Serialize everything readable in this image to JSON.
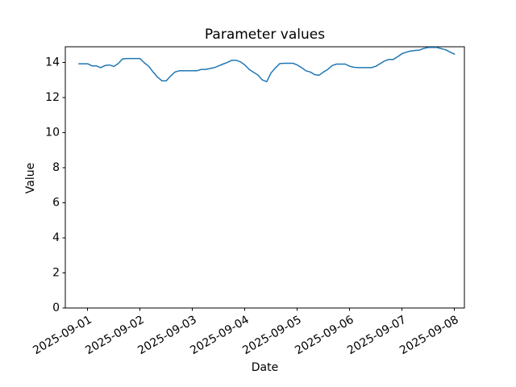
{
  "chart_data": {
    "type": "line",
    "title": "Parameter values",
    "xlabel": "Date",
    "ylabel": "Value",
    "grid": false,
    "legend": "none",
    "line_color": "#1f77b4",
    "axis_color": "#000000",
    "background_color": "#ffffff",
    "x_tick_labels": [
      "2025-09-01",
      "2025-09-02",
      "2025-09-03",
      "2025-09-04",
      "2025-09-05",
      "2025-09-06",
      "2025-09-07",
      "2025-09-08"
    ],
    "y_tick_labels": [
      "0",
      "2",
      "4",
      "6",
      "8",
      "10",
      "12",
      "14"
    ],
    "y_ticks": [
      0,
      2,
      4,
      6,
      8,
      10,
      12,
      14
    ],
    "ylim": [
      0,
      14.89
    ],
    "xlim_days_from_first_tick": [
      -0.426,
      7.19
    ],
    "series": [
      {
        "name": "parameter-values",
        "x_unit": "days since 2025-09-01 00:00",
        "points": [
          [
            -0.167,
            13.92
          ],
          [
            -0.083,
            13.92
          ],
          [
            0.0,
            13.92
          ],
          [
            0.083,
            13.8
          ],
          [
            0.167,
            13.8
          ],
          [
            0.25,
            13.7
          ],
          [
            0.333,
            13.82
          ],
          [
            0.417,
            13.85
          ],
          [
            0.5,
            13.77
          ],
          [
            0.583,
            13.93
          ],
          [
            0.667,
            14.2
          ],
          [
            0.75,
            14.22
          ],
          [
            0.833,
            14.22
          ],
          [
            0.917,
            14.22
          ],
          [
            1.0,
            14.22
          ],
          [
            1.083,
            13.97
          ],
          [
            1.167,
            13.78
          ],
          [
            1.25,
            13.45
          ],
          [
            1.333,
            13.16
          ],
          [
            1.417,
            12.95
          ],
          [
            1.5,
            12.95
          ],
          [
            1.583,
            13.22
          ],
          [
            1.667,
            13.45
          ],
          [
            1.75,
            13.52
          ],
          [
            1.833,
            13.52
          ],
          [
            1.917,
            13.52
          ],
          [
            2.0,
            13.52
          ],
          [
            2.083,
            13.52
          ],
          [
            2.167,
            13.6
          ],
          [
            2.25,
            13.6
          ],
          [
            2.333,
            13.65
          ],
          [
            2.417,
            13.7
          ],
          [
            2.5,
            13.8
          ],
          [
            2.583,
            13.9
          ],
          [
            2.667,
            14.0
          ],
          [
            2.75,
            14.12
          ],
          [
            2.833,
            14.12
          ],
          [
            2.917,
            14.03
          ],
          [
            3.0,
            13.85
          ],
          [
            3.083,
            13.6
          ],
          [
            3.167,
            13.44
          ],
          [
            3.25,
            13.28
          ],
          [
            3.333,
            13.0
          ],
          [
            3.417,
            12.9
          ],
          [
            3.5,
            13.4
          ],
          [
            3.583,
            13.68
          ],
          [
            3.667,
            13.93
          ],
          [
            3.75,
            13.95
          ],
          [
            3.833,
            13.95
          ],
          [
            3.917,
            13.95
          ],
          [
            4.0,
            13.85
          ],
          [
            4.083,
            13.7
          ],
          [
            4.167,
            13.52
          ],
          [
            4.25,
            13.45
          ],
          [
            4.333,
            13.3
          ],
          [
            4.417,
            13.27
          ],
          [
            4.5,
            13.45
          ],
          [
            4.583,
            13.6
          ],
          [
            4.667,
            13.82
          ],
          [
            4.75,
            13.9
          ],
          [
            4.833,
            13.9
          ],
          [
            4.917,
            13.9
          ],
          [
            5.0,
            13.78
          ],
          [
            5.083,
            13.72
          ],
          [
            5.167,
            13.7
          ],
          [
            5.25,
            13.7
          ],
          [
            5.333,
            13.7
          ],
          [
            5.417,
            13.7
          ],
          [
            5.5,
            13.78
          ],
          [
            5.583,
            13.93
          ],
          [
            5.667,
            14.08
          ],
          [
            5.75,
            14.17
          ],
          [
            5.833,
            14.17
          ],
          [
            5.917,
            14.32
          ],
          [
            6.0,
            14.5
          ],
          [
            6.083,
            14.58
          ],
          [
            6.167,
            14.65
          ],
          [
            6.25,
            14.68
          ],
          [
            6.333,
            14.7
          ],
          [
            6.417,
            14.8
          ],
          [
            6.5,
            14.85
          ],
          [
            6.583,
            14.85
          ],
          [
            6.667,
            14.85
          ],
          [
            6.75,
            14.78
          ],
          [
            6.833,
            14.72
          ],
          [
            6.917,
            14.58
          ],
          [
            7.0,
            14.47
          ]
        ]
      }
    ]
  }
}
